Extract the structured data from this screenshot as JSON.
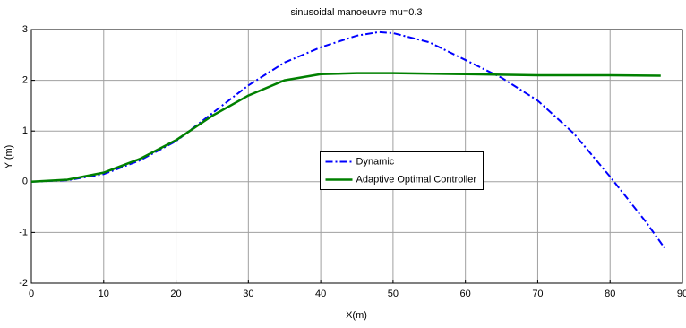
{
  "chart_data": {
    "type": "line",
    "title": "sinusoidal manoeuvre mu=0.3",
    "xlabel": "X(m)",
    "ylabel": "Y (m)",
    "series": [
      {
        "name": "Dynamic",
        "color": "#0000ff",
        "linestyle": "dash-dot",
        "x": [
          0,
          5,
          10,
          15,
          20,
          25,
          30,
          35,
          40,
          45,
          48,
          50,
          55,
          60,
          65,
          70,
          75,
          80,
          85,
          87.5
        ],
        "values": [
          0,
          0.03,
          0.15,
          0.42,
          0.8,
          1.35,
          1.9,
          2.35,
          2.65,
          2.88,
          2.95,
          2.93,
          2.75,
          2.4,
          2.05,
          1.6,
          0.95,
          0.1,
          -0.8,
          -1.3
        ]
      },
      {
        "name": "Adaptive Optimal Controller",
        "color": "#008000",
        "linestyle": "solid",
        "x": [
          0,
          5,
          10,
          15,
          20,
          25,
          30,
          35,
          40,
          45,
          50,
          60,
          70,
          80,
          87
        ],
        "values": [
          0,
          0.04,
          0.18,
          0.45,
          0.82,
          1.3,
          1.7,
          2.0,
          2.12,
          2.14,
          2.14,
          2.12,
          2.1,
          2.1,
          2.09
        ]
      }
    ],
    "xlim": [
      0,
      90
    ],
    "xticks": [
      0,
      10,
      20,
      30,
      40,
      50,
      60,
      70,
      80,
      90
    ],
    "ylim": [
      -2,
      3
    ],
    "yticks": [
      -2,
      -1,
      0,
      1,
      2,
      3
    ],
    "grid": true,
    "legend": "center"
  }
}
